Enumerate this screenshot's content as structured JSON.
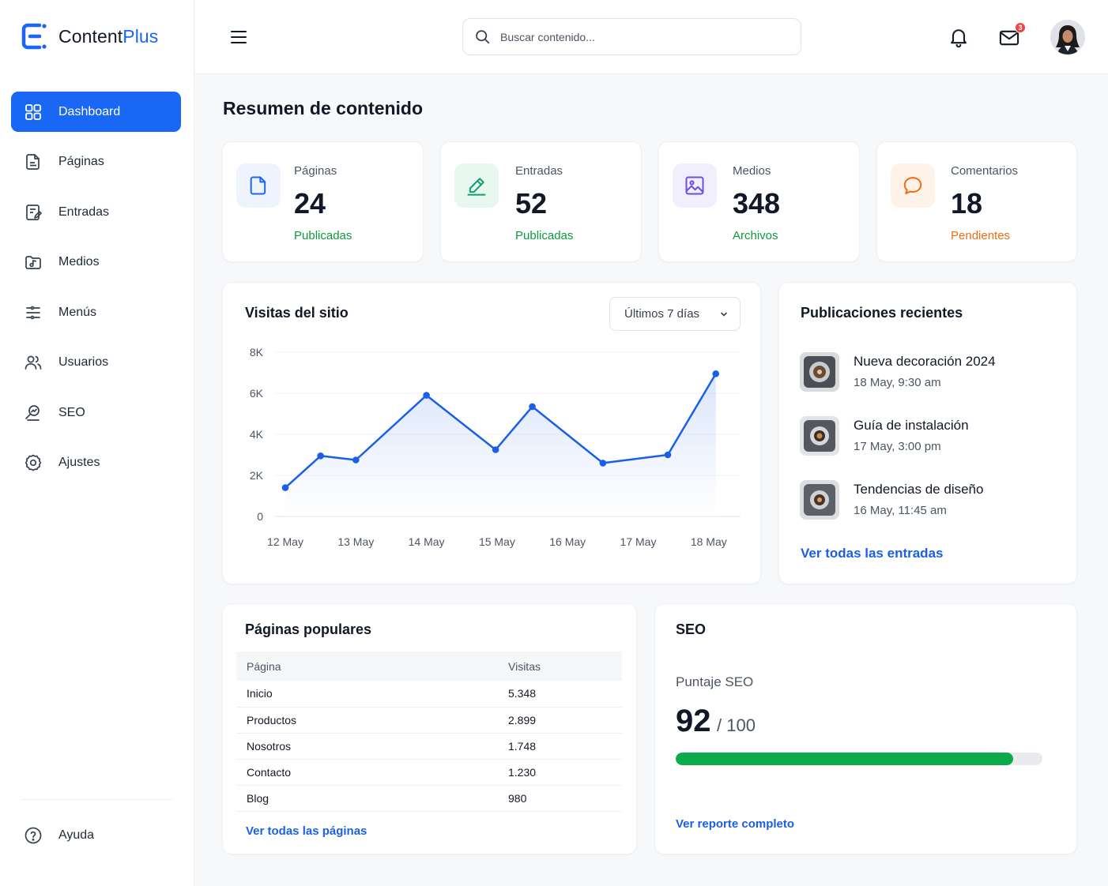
{
  "brand": {
    "name_main": "Content",
    "name_accent": "Plus",
    "accent_color": "#1a66f5"
  },
  "sidebar": {
    "items": [
      {
        "label": "Dashboard",
        "icon": "grid-icon",
        "active": true
      },
      {
        "label": "Páginas",
        "icon": "page-icon"
      },
      {
        "label": "Entradas",
        "icon": "posts-icon"
      },
      {
        "label": "Medios",
        "icon": "media-icon"
      },
      {
        "label": "Menús",
        "icon": "menu-list-icon"
      },
      {
        "label": "Usuarios",
        "icon": "users-icon"
      },
      {
        "label": "SEO",
        "icon": "seo-icon"
      },
      {
        "label": "Ajustes",
        "icon": "settings-icon"
      }
    ],
    "help_label": "Ayuda"
  },
  "topbar": {
    "search_placeholder": "Buscar contenido...",
    "mail_badge": "3"
  },
  "page_title": "Resumen de contenido",
  "stats": [
    {
      "label": "Páginas",
      "value": "24",
      "sub": "Publicadas",
      "sub_color": "#0a9a3c",
      "icon": "page-icon",
      "icon_color": "#1a66f5",
      "icon_bg": "#eef3fe"
    },
    {
      "label": "Entradas",
      "value": "52",
      "sub": "Publicadas",
      "sub_color": "#0a9a3c",
      "icon": "pencil-icon",
      "icon_color": "#0f9f6e",
      "icon_bg": "#e9f7f1"
    },
    {
      "label": "Medios",
      "value": "348",
      "sub": "Archivos",
      "sub_color": "#0a9a3c",
      "icon": "image-icon",
      "icon_color": "#6d4fe0",
      "icon_bg": "#f1eefd"
    },
    {
      "label": "Comentarios",
      "value": "18",
      "sub": "Pendientes",
      "sub_color": "#f26b0f",
      "icon": "comment-icon",
      "icon_color": "#f26b0f",
      "icon_bg": "#fff2e8"
    }
  ],
  "visits": {
    "title": "Visitas del sitio",
    "range_label": "Últimos 7 días"
  },
  "chart_data": {
    "type": "line",
    "title": "Visitas del sitio",
    "x_tick_labels": [
      "12 May",
      "13 May",
      "14 May",
      "15 May",
      "16 May",
      "17 May",
      "18 May"
    ],
    "y_tick_labels": [
      "0",
      "2K",
      "4K",
      "6K",
      "8K"
    ],
    "ylim": [
      0,
      8000
    ],
    "series": [
      {
        "values": [
          1400,
          2950,
          2750,
          5900,
          3250,
          5350,
          2600,
          3000,
          6950
        ]
      }
    ],
    "point_dates": [
      "2024-05-12",
      "2024-05-12",
      "2024-05-13",
      "2024-05-14",
      "2024-05-14",
      "2024-05-15",
      "2024-05-16",
      "2024-05-17",
      "2024-05-18"
    ],
    "line_color": "#1a5fe6",
    "grid": true
  },
  "recent": {
    "title": "Publicaciones recientes",
    "items": [
      {
        "title": "Nueva decoración 2024",
        "date": "18 May, 9:30 am"
      },
      {
        "title": "Guía de instalación",
        "date": "17 May, 3:00 pm"
      },
      {
        "title": "Tendencias de diseño",
        "date": "16 May, 11:45 am"
      }
    ],
    "link": "Ver todas las entradas"
  },
  "popular": {
    "title": "Páginas populares",
    "columns": [
      "Página",
      "Visitas"
    ],
    "rows": [
      [
        "Inicio",
        "5.348"
      ],
      [
        "Productos",
        "2.899"
      ],
      [
        "Nosotros",
        "1.748"
      ],
      [
        "Contacto",
        "1.230"
      ],
      [
        "Blog",
        "980"
      ]
    ],
    "link": "Ver todas las páginas"
  },
  "seo": {
    "title": "SEO",
    "label": "Puntaje SEO",
    "score": "92",
    "max": "/ 100",
    "progress_fraction": 0.92,
    "bar_color": "#0bab4b",
    "link": "Ver reporte completo"
  }
}
